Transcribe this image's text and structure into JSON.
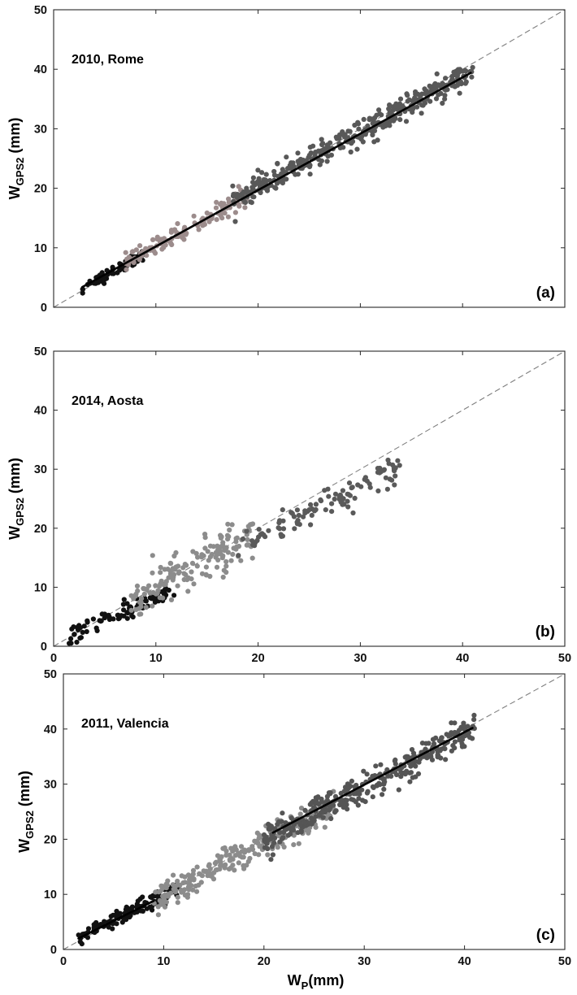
{
  "colors": {
    "background": "#ffffff",
    "axes": "#262626",
    "identity_line": "#7f7f7f",
    "fit_line": "#000000",
    "series_dark": "#111111",
    "series_mid": "#555555",
    "series_light": "#8c8c8c",
    "series_rose": "#9c8c8c"
  },
  "chart_data": [
    {
      "type": "scatter",
      "title": "2010, Rome",
      "panel_label": "(a)",
      "xlabel": "",
      "ylabel": {
        "main": "W",
        "sub": "GPS2",
        "unit": " (mm)"
      },
      "xlim": [
        0,
        50
      ],
      "ylim": [
        0,
        50
      ],
      "yticks": [
        "0",
        "10",
        "20",
        "30",
        "40",
        "50"
      ],
      "xticks": [],
      "grid": false,
      "reference_line": {
        "type": "dashed",
        "from": [
          0,
          0
        ],
        "to": [
          50,
          50
        ]
      },
      "fit_lines": [
        {
          "from": [
            2.8,
            3.4
          ],
          "to": [
            40.8,
            39.4
          ]
        }
      ],
      "series": [
        {
          "color": "#111111",
          "count": 70,
          "x_range": [
            2.8,
            9.0
          ],
          "slope": 0.95,
          "intercept": 0.5,
          "noise": 0.5
        },
        {
          "color": "#9c8c8c",
          "count": 130,
          "x_range": [
            7.0,
            19.0
          ],
          "slope": 0.95,
          "intercept": 0.8,
          "noise": 0.8
        },
        {
          "color": "#585858",
          "count": 380,
          "x_range": [
            17.5,
            41.0
          ],
          "slope": 0.94,
          "intercept": 1.2,
          "noise": 1.0
        }
      ]
    },
    {
      "type": "scatter",
      "title": "2014, Aosta",
      "panel_label": "(b)",
      "xlabel": "",
      "ylabel": {
        "main": "W",
        "sub": "GPS2",
        "unit": " (mm)"
      },
      "xlim": [
        0,
        50
      ],
      "ylim": [
        0,
        50
      ],
      "yticks": [
        "0",
        "10",
        "20",
        "30",
        "40",
        "50"
      ],
      "xticks": [
        "0",
        "10",
        "20",
        "30",
        "40",
        "50"
      ],
      "grid": false,
      "reference_line": {
        "type": "dashed",
        "from": [
          0,
          0
        ],
        "to": [
          50,
          50
        ]
      },
      "fit_lines": [],
      "series": [
        {
          "color": "#111111",
          "count": 90,
          "x_range": [
            1.5,
            12.0
          ],
          "slope": 0.8,
          "intercept": 0.4,
          "noise": 0.8
        },
        {
          "color": "#8c8c8c",
          "count": 160,
          "x_range": [
            7.5,
            19.5
          ],
          "slope": 0.92,
          "intercept": 0.8,
          "noise": 1.8
        },
        {
          "color": "#5a5a5a",
          "count": 110,
          "x_range": [
            18.0,
            34.0
          ],
          "slope": 0.88,
          "intercept": 0.8,
          "noise": 1.4
        }
      ]
    },
    {
      "type": "scatter",
      "title": "2011, Valencia",
      "panel_label": "(c)",
      "xlabel": {
        "main": "W",
        "sub": "P",
        "unit": "(mm)"
      },
      "ylabel": {
        "main": "W",
        "sub": "GPS2",
        "unit": " (mm)"
      },
      "xlim": [
        0,
        50
      ],
      "ylim": [
        0,
        50
      ],
      "yticks": [
        "0",
        "10",
        "20",
        "30",
        "40",
        "50"
      ],
      "xticks": [
        "0",
        "10",
        "20",
        "30",
        "40",
        "50"
      ],
      "grid": false,
      "reference_line": {
        "type": "dashed",
        "from": [
          0,
          0
        ],
        "to": [
          50,
          50
        ]
      },
      "fit_lines": [
        {
          "from": [
            1.5,
            2.0
          ],
          "to": [
            9.0,
            8.8
          ]
        },
        {
          "from": [
            20.9,
            21.2
          ],
          "to": [
            40.8,
            40.2
          ]
        }
      ],
      "series": [
        {
          "color": "#111111",
          "count": 120,
          "x_range": [
            1.5,
            11.5
          ],
          "slope": 0.92,
          "intercept": 0.6,
          "noise": 0.7
        },
        {
          "color": "#8c8c8c",
          "count": 260,
          "x_range": [
            9.0,
            27.0
          ],
          "slope": 0.95,
          "intercept": 0.3,
          "noise": 1.3
        },
        {
          "color": "#555555",
          "count": 340,
          "x_range": [
            20.0,
            41.0
          ],
          "slope": 0.95,
          "intercept": 1.0,
          "noise": 1.3
        }
      ]
    }
  ]
}
